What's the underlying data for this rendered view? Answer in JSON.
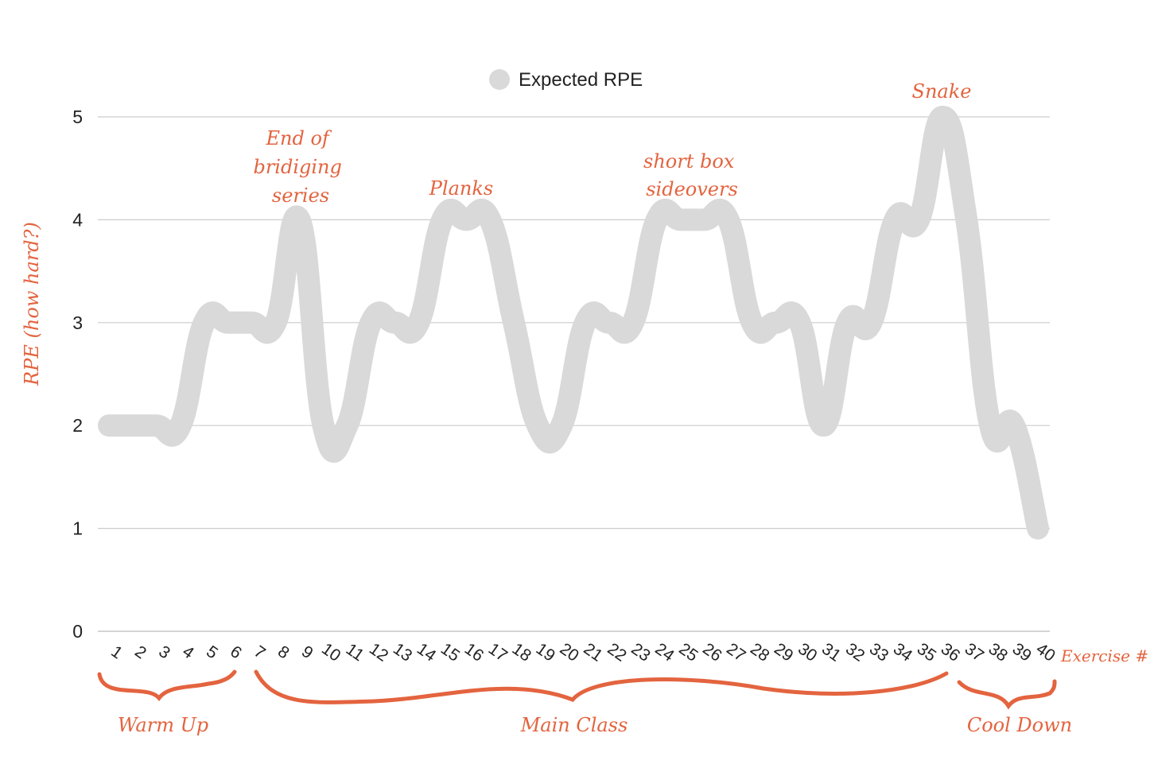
{
  "chart_data": {
    "type": "line",
    "legend": {
      "entries": [
        "Expected RPE"
      ],
      "placement": "top-center"
    },
    "ylabel": "RPE (how hard?)",
    "xlabel": "Exercise #",
    "yticks": [
      "0",
      "1",
      "2",
      "3",
      "4",
      "5"
    ],
    "ylim": [
      0,
      5
    ],
    "grid": true,
    "x": [
      "1",
      "2",
      "3",
      "4",
      "5",
      "6",
      "7",
      "8",
      "9",
      "10",
      "11",
      "12",
      "13",
      "14",
      "15",
      "16",
      "17",
      "18",
      "19",
      "20",
      "21",
      "22",
      "23",
      "24",
      "25",
      "26",
      "27",
      "28",
      "29",
      "30",
      "31",
      "32",
      "33",
      "34",
      "35",
      "36",
      "37",
      "38",
      "39",
      "40"
    ],
    "series": [
      {
        "name": "Expected RPE",
        "color": "#d9d9d9",
        "values": [
          2,
          2,
          2,
          2,
          3,
          3,
          3,
          3,
          4,
          2,
          2,
          3,
          3,
          3,
          4,
          4,
          4,
          3,
          2,
          2,
          3,
          3,
          3,
          4,
          4,
          4,
          4,
          3,
          3,
          3,
          2,
          3,
          3,
          4,
          4,
          5,
          4,
          2,
          2,
          1
        ]
      }
    ],
    "annotations": [
      {
        "id": "bridging",
        "lines": [
          "End of",
          "bridiging",
          "series"
        ],
        "at_x": "9"
      },
      {
        "id": "planks",
        "lines": [
          "Planks"
        ],
        "at_x": "16"
      },
      {
        "id": "sideovers",
        "lines": [
          "short box",
          "sideovers"
        ],
        "at_x": "25"
      },
      {
        "id": "snake",
        "lines": [
          "Snake"
        ],
        "at_x": "36"
      }
    ],
    "groups": [
      {
        "label": "Warm Up",
        "from": "1",
        "to": "6"
      },
      {
        "label": "Main Class",
        "from": "7",
        "to": "36"
      },
      {
        "label": "Cool Down",
        "from": "37",
        "to": "40"
      }
    ],
    "annotation_color": "#e3643f"
  }
}
